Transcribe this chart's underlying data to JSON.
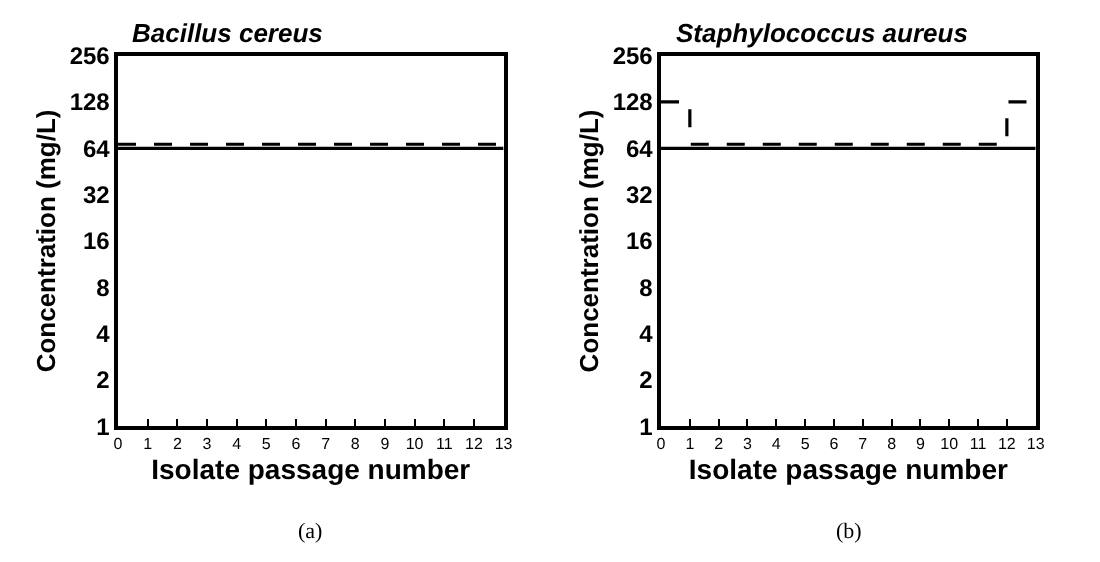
{
  "chart_data": [
    {
      "type": "line",
      "title": "Bacillus cereus",
      "xlabel": "Isolate passage number",
      "ylabel": "Concentration (mg/L)",
      "log": true,
      "xlim": [
        0,
        13
      ],
      "xticks": [
        0,
        1,
        2,
        3,
        4,
        5,
        6,
        7,
        8,
        9,
        10,
        11,
        12,
        13
      ],
      "ylim": [
        1,
        256
      ],
      "yticks": [
        1,
        2,
        4,
        8,
        16,
        32,
        64,
        128,
        256
      ],
      "annotations": [
        "(a)"
      ],
      "series": [
        {
          "color": "#000000",
          "line_style": "solid",
          "x": [
            0,
            13
          ],
          "values": [
            64,
            64
          ]
        },
        {
          "type": "step",
          "color": "#000000",
          "line_style": "dashed",
          "x": [
            0,
            13
          ],
          "values": [
            68,
            68
          ]
        }
      ]
    },
    {
      "type": "line",
      "title": "Staphylococcus aureus",
      "xlabel": "Isolate passage number",
      "ylabel": "Concentration (mg/L)",
      "log": true,
      "xlim": [
        0,
        13
      ],
      "xticks": [
        0,
        1,
        2,
        3,
        4,
        5,
        6,
        7,
        8,
        9,
        10,
        11,
        12,
        13
      ],
      "ylim": [
        1,
        256
      ],
      "yticks": [
        1,
        2,
        4,
        8,
        16,
        32,
        64,
        128,
        256
      ],
      "annotations": [
        "(b)"
      ],
      "series": [
        {
          "color": "#000000",
          "line_style": "solid",
          "x": [
            0,
            13
          ],
          "values": [
            64,
            64
          ]
        },
        {
          "type": "step",
          "color": "#000000",
          "line_style": "dashed",
          "x": [
            0,
            1,
            12,
            13
          ],
          "values": [
            128,
            68,
            128,
            128
          ]
        }
      ]
    }
  ]
}
